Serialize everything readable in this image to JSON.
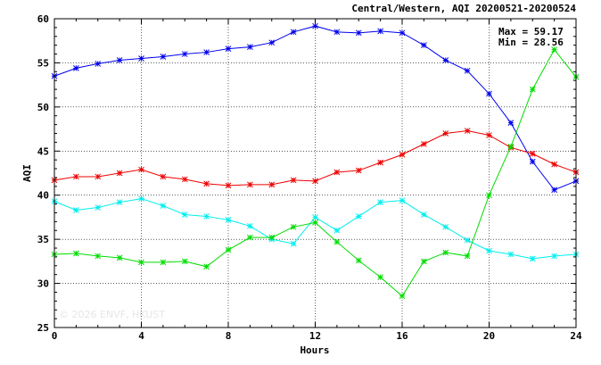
{
  "chart_data": {
    "type": "line",
    "title": "Central/Western, AQI 20200521-20200524",
    "xlabel": "Hours",
    "ylabel": "AQI",
    "xlim": [
      0,
      24
    ],
    "ylim": [
      25,
      60
    ],
    "xticks": [
      0,
      4,
      8,
      12,
      16,
      20,
      24
    ],
    "yticks": [
      25,
      30,
      35,
      40,
      45,
      50,
      55,
      60
    ],
    "grid": true,
    "annotations": {
      "max": "Max = 59.17",
      "min": "Min = 28.56"
    },
    "watermark": "© 2026  ENVF, HKUST",
    "x": [
      0,
      1,
      2,
      3,
      4,
      5,
      6,
      7,
      8,
      9,
      10,
      11,
      12,
      13,
      14,
      15,
      16,
      17,
      18,
      19,
      20,
      21,
      22,
      23,
      24
    ],
    "series": [
      {
        "color": "#0000ee",
        "values": [
          53.5,
          54.4,
          54.9,
          55.3,
          55.5,
          55.7,
          56.0,
          56.2,
          56.6,
          56.8,
          57.3,
          58.5,
          59.17,
          58.5,
          58.4,
          58.6,
          58.4,
          57.0,
          55.3,
          54.1,
          51.5,
          48.2,
          43.8,
          40.6,
          41.6
        ]
      },
      {
        "color": "#ee0000",
        "values": [
          41.7,
          42.1,
          42.1,
          42.5,
          42.9,
          42.1,
          41.8,
          41.3,
          41.1,
          41.2,
          41.2,
          41.7,
          41.6,
          42.6,
          42.8,
          43.7,
          44.6,
          45.8,
          47.0,
          47.3,
          46.8,
          45.4,
          44.7,
          43.5,
          42.6
        ]
      },
      {
        "color": "#00eeee",
        "values": [
          39.3,
          38.3,
          38.6,
          39.2,
          39.6,
          38.8,
          37.8,
          37.6,
          37.2,
          36.5,
          35.0,
          34.5,
          37.5,
          36.0,
          37.6,
          39.2,
          39.4,
          37.8,
          36.4,
          34.9,
          33.7,
          33.3,
          32.8,
          33.1,
          33.3
        ]
      },
      {
        "color": "#00dd00",
        "values": [
          33.3,
          33.4,
          33.1,
          32.9,
          32.4,
          32.4,
          32.5,
          31.9,
          33.8,
          35.2,
          35.2,
          36.4,
          36.9,
          34.7,
          32.6,
          30.7,
          28.56,
          32.5,
          33.5,
          33.1,
          40.0,
          45.5,
          52.0,
          56.5,
          53.4
        ]
      }
    ]
  }
}
